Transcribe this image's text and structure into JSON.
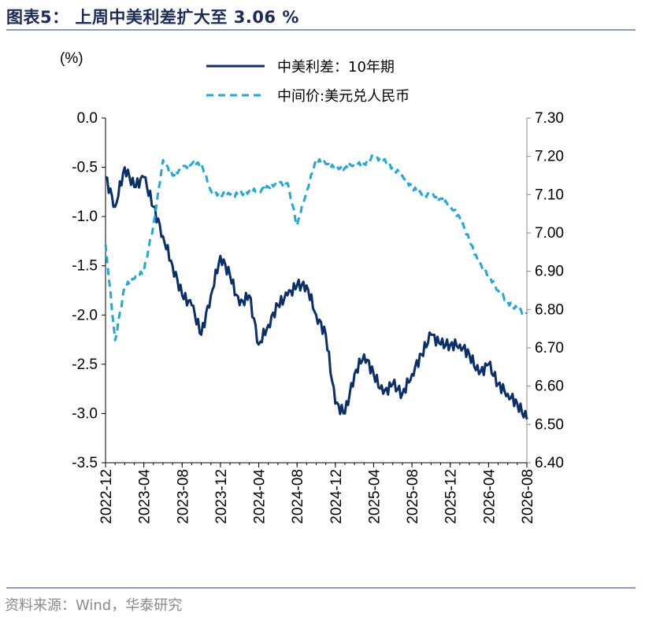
{
  "header": {
    "title": "图表5：  上周中美利差扩大至 3.06 %"
  },
  "footer": {
    "source": "资料来源：Wind，华泰研究"
  },
  "chart_data": {
    "type": "line",
    "left_unit": "(%)",
    "left_ylim": [
      -3.5,
      0.0
    ],
    "left_ticks": [
      "0.0",
      "-0.5",
      "-1.0",
      "-1.5",
      "-2.0",
      "-2.5",
      "-3.0",
      "-3.5"
    ],
    "right_ylim": [
      6.4,
      7.3
    ],
    "right_ticks": [
      "7.30",
      "7.20",
      "7.10",
      "7.00",
      "6.90",
      "6.80",
      "6.70",
      "6.60",
      "6.50",
      "6.40"
    ],
    "x_ticks": [
      "2022-12",
      "2023-04",
      "2023-08",
      "2023-12",
      "2024-04",
      "2024-08",
      "2024-12",
      "2025-04",
      "2025-08",
      "2025-12",
      "2026-04",
      "2026-08"
    ],
    "legend_position": "top-center",
    "grid": false,
    "series": [
      {
        "name": "中美利差：10年期",
        "axis": "left",
        "color": "#0b2f6b",
        "style": "solid",
        "x": [
          "2022-12",
          "2023-01",
          "2023-02",
          "2023-03",
          "2023-04",
          "2023-05",
          "2023-06",
          "2023-07",
          "2023-08",
          "2023-09",
          "2023-10",
          "2023-11",
          "2023-12",
          "2024-01",
          "2024-02",
          "2024-03",
          "2024-04",
          "2024-05",
          "2024-06",
          "2024-07",
          "2024-08",
          "2024-09",
          "2024-10",
          "2024-11",
          "2024-12",
          "2025-01",
          "2025-02",
          "2025-03",
          "2025-04",
          "2025-05",
          "2025-06",
          "2025-07",
          "2025-08",
          "2025-09",
          "2025-10",
          "2025-11",
          "2025-12",
          "2026-01",
          "2026-02",
          "2026-03",
          "2026-04",
          "2026-05",
          "2026-06",
          "2026-07",
          "2026-08"
        ],
        "values": [
          -0.6,
          -0.9,
          -0.5,
          -0.7,
          -0.6,
          -0.9,
          -1.2,
          -1.5,
          -1.8,
          -1.9,
          -2.2,
          -1.8,
          -1.4,
          -1.6,
          -1.9,
          -1.8,
          -2.3,
          -2.1,
          -1.9,
          -1.8,
          -1.7,
          -1.7,
          -2.0,
          -2.2,
          -2.9,
          -3.0,
          -2.6,
          -2.4,
          -2.6,
          -2.8,
          -2.7,
          -2.8,
          -2.6,
          -2.4,
          -2.2,
          -2.3,
          -2.3,
          -2.3,
          -2.4,
          -2.6,
          -2.5,
          -2.7,
          -2.8,
          -2.9,
          -3.06
        ]
      },
      {
        "name": "中间价:美元兑人民币",
        "axis": "right",
        "color": "#1fa8dc",
        "style": "dashed",
        "x": [
          "2022-12",
          "2023-01",
          "2023-02",
          "2023-03",
          "2023-04",
          "2023-05",
          "2023-06",
          "2023-07",
          "2023-08",
          "2023-09",
          "2023-10",
          "2023-11",
          "2023-12",
          "2024-01",
          "2024-02",
          "2024-03",
          "2024-04",
          "2024-05",
          "2024-06",
          "2024-07",
          "2024-08",
          "2024-09",
          "2024-10",
          "2024-11",
          "2024-12",
          "2025-01",
          "2025-02",
          "2025-03",
          "2025-04",
          "2025-05",
          "2025-06",
          "2025-07",
          "2025-08",
          "2025-09",
          "2025-10",
          "2025-11",
          "2025-12",
          "2026-01",
          "2026-02",
          "2026-03",
          "2026-04",
          "2026-05",
          "2026-06",
          "2026-07",
          "2026-08"
        ],
        "values": [
          6.97,
          6.72,
          6.86,
          6.88,
          6.9,
          7.02,
          7.19,
          7.15,
          7.17,
          7.18,
          7.18,
          7.11,
          7.1,
          7.1,
          7.1,
          7.11,
          7.11,
          7.12,
          7.13,
          7.13,
          7.02,
          7.11,
          7.19,
          7.18,
          7.17,
          7.17,
          7.18,
          7.18,
          7.2,
          7.19,
          7.17,
          7.15,
          7.12,
          7.1,
          7.1,
          7.09,
          7.07,
          7.04,
          6.98,
          6.92,
          6.89,
          6.85,
          6.82,
          6.8,
          6.79
        ]
      }
    ]
  }
}
